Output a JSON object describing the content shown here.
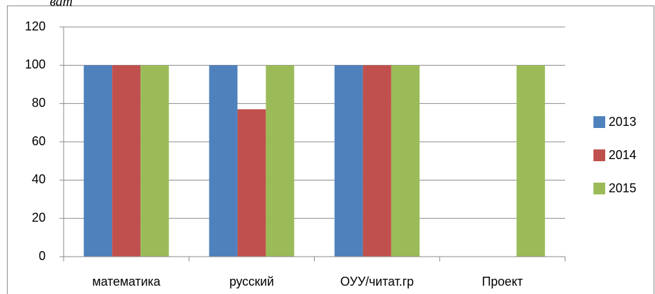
{
  "chart_data": {
    "type": "bar",
    "annotation": "ват",
    "categories": [
      "математика",
      "русский",
      "ОУУ/читат.гр",
      "Проект"
    ],
    "series": [
      {
        "name": "2013",
        "color": "#4f81bd",
        "values": [
          100,
          100,
          100,
          null
        ]
      },
      {
        "name": "2014",
        "color": "#c0504d",
        "values": [
          100,
          77,
          100,
          null
        ]
      },
      {
        "name": "2015",
        "color": "#9bbb59",
        "values": [
          100,
          100,
          100,
          100
        ]
      }
    ],
    "ylim": [
      0,
      120
    ],
    "yticks": [
      0,
      20,
      40,
      60,
      80,
      100,
      120
    ],
    "grid": true,
    "legend": "right"
  }
}
